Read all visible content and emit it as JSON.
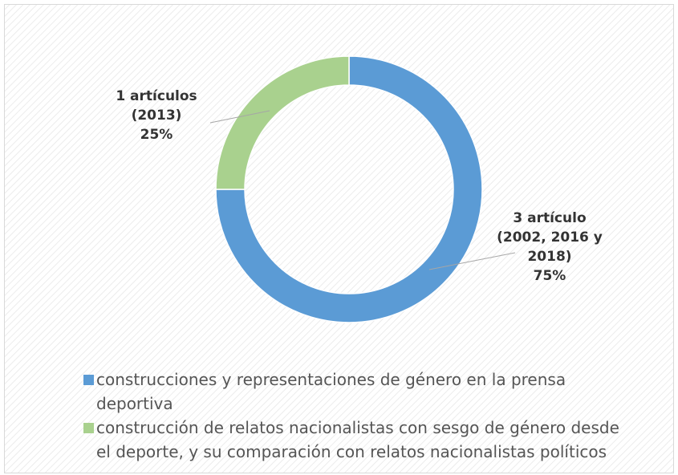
{
  "chart_data": {
    "type": "donut",
    "categories": [
      "construcciones y representaciones de género en la prensa deportiva",
      "construcción de relatos nacionalistas con sesgo de género desde el deporte, y su comparación con relatos nacionalistas políticos"
    ],
    "values": [
      75,
      25
    ],
    "value_labels": [
      "75%",
      "25%"
    ],
    "label_lines": [
      [
        "3 artículo",
        "(2002, 2016 y",
        "2018)"
      ],
      [
        "1 artículos",
        "(2013)"
      ]
    ],
    "colors": [
      "#5b9bd5",
      "#a9d18e"
    ],
    "legend": "bottom"
  }
}
